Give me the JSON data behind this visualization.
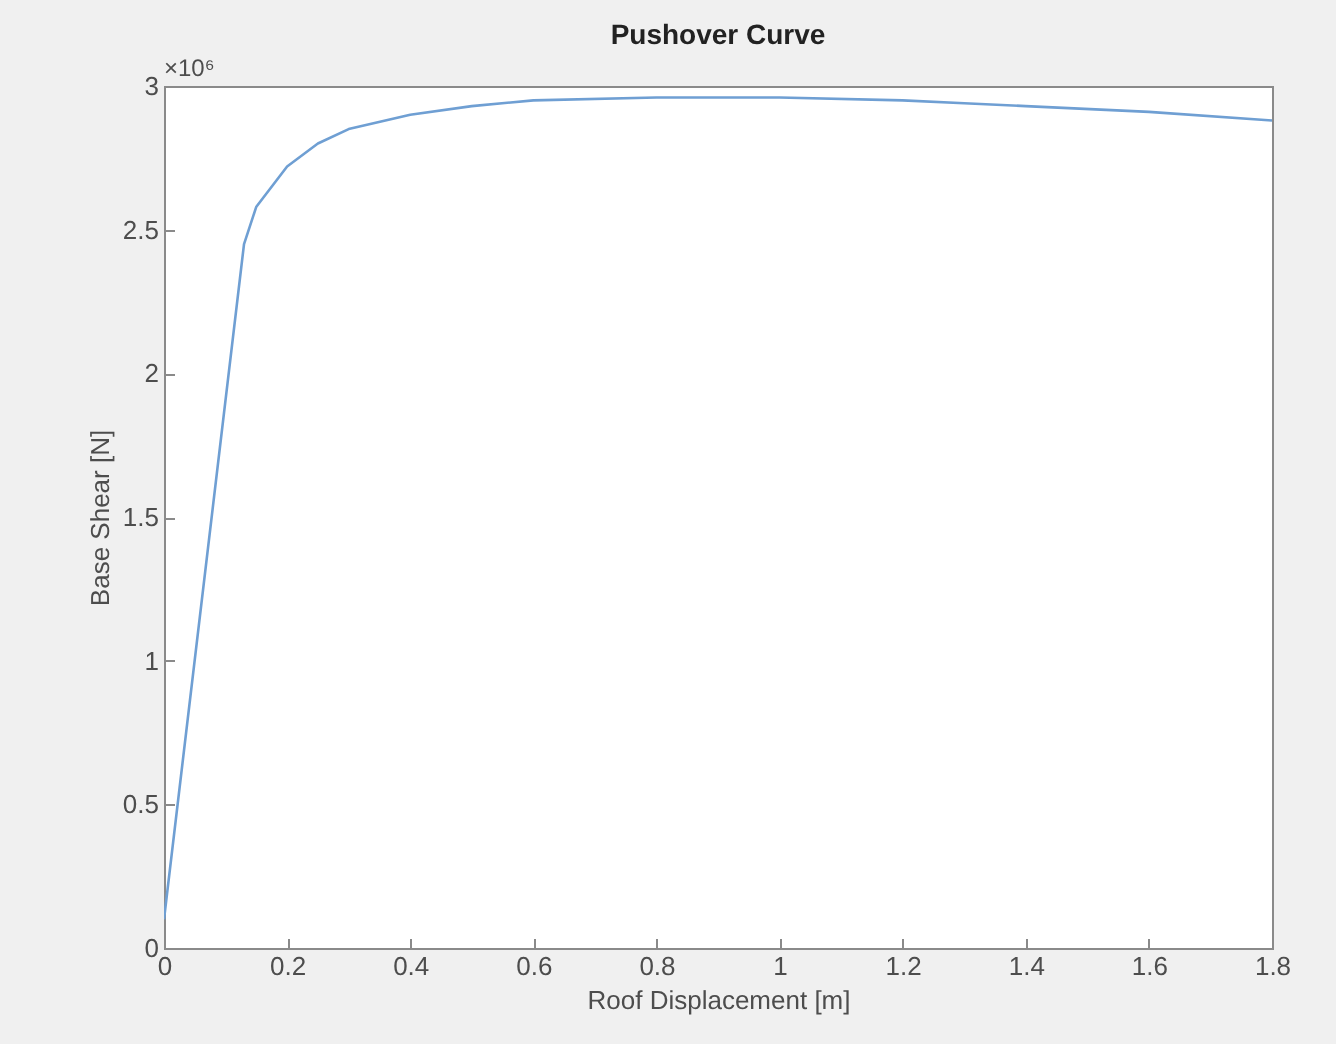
{
  "chart_data": {
    "type": "line",
    "title": "Pushover Curve",
    "xlabel": "Roof Displacement [m]",
    "ylabel": "Base Shear [N]",
    "annotations": [
      "×10⁶"
    ],
    "x": [
      0,
      0.13,
      0.15,
      0.2,
      0.25,
      0.3,
      0.4,
      0.5,
      0.6,
      0.8,
      1.0,
      1.2,
      1.3,
      1.4,
      1.6,
      1.8
    ],
    "series": [
      {
        "color": "#6f9fd3",
        "values": [
          0.1,
          2.45,
          2.58,
          2.72,
          2.8,
          2.85,
          2.9,
          2.93,
          2.95,
          2.96,
          2.96,
          2.95,
          2.94,
          2.93,
          2.91,
          2.88
        ]
      }
    ],
    "xlim": [
      0,
      1.8
    ],
    "xticks": [
      0,
      0.2,
      0.4,
      0.6,
      0.8,
      1,
      1.2,
      1.4,
      1.6,
      1.8
    ],
    "ylim": [
      0,
      3
    ],
    "yticks": [
      0,
      0.5,
      1,
      1.5,
      2,
      2.5,
      3
    ],
    "grid": false,
    "marker": "none",
    "line_style": "solid"
  }
}
